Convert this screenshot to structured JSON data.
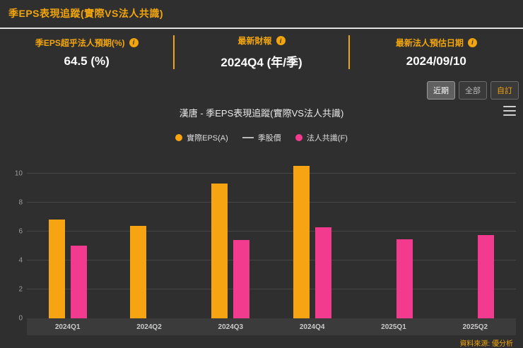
{
  "header": {
    "title": "季EPS表現追蹤(實際VS法人共識)"
  },
  "stats": [
    {
      "label": "季EPS超乎法人預期(%)",
      "value": "64.5 (%)"
    },
    {
      "label": "最新財報",
      "value": "2024Q4 (年/季)"
    },
    {
      "label": "最新法人預估日期",
      "value": "2024/09/10"
    }
  ],
  "range_buttons": {
    "recent": "近期",
    "all": "全部",
    "custom": "自訂",
    "active": "近期"
  },
  "chart": {
    "title": "漢唐 - 季EPS表現追蹤(實際VS法人共識)",
    "source": "資料來源: 優分析",
    "colors": {
      "accent": "#f2a50c",
      "actual_bar": "#f7a413",
      "consensus_bar": "#f23b8e",
      "price_line": "#bbbbbb"
    }
  },
  "chart_data": {
    "type": "bar",
    "title": "漢唐 - 季EPS表現追蹤(實際VS法人共識)",
    "categories": [
      "2024Q1",
      "2024Q2",
      "2024Q3",
      "2024Q4",
      "2025Q1",
      "2025Q2"
    ],
    "series": [
      {
        "name": "實際EPS(A)",
        "type": "bar",
        "color": "#f7a413",
        "values": [
          6.8,
          6.4,
          9.3,
          10.5,
          null,
          null
        ]
      },
      {
        "name": "季股價",
        "type": "line",
        "color": "#bbbbbb",
        "values": []
      },
      {
        "name": "法人共識(F)",
        "type": "bar",
        "color": "#f23b8e",
        "values": [
          5.0,
          null,
          5.4,
          6.3,
          5.45,
          5.75
        ]
      }
    ],
    "xlabel": "",
    "ylabel": "",
    "ylim": [
      0,
      11
    ],
    "yticks": [
      0,
      2,
      4,
      6,
      8,
      10
    ],
    "grid": true,
    "legend_position": "top"
  }
}
